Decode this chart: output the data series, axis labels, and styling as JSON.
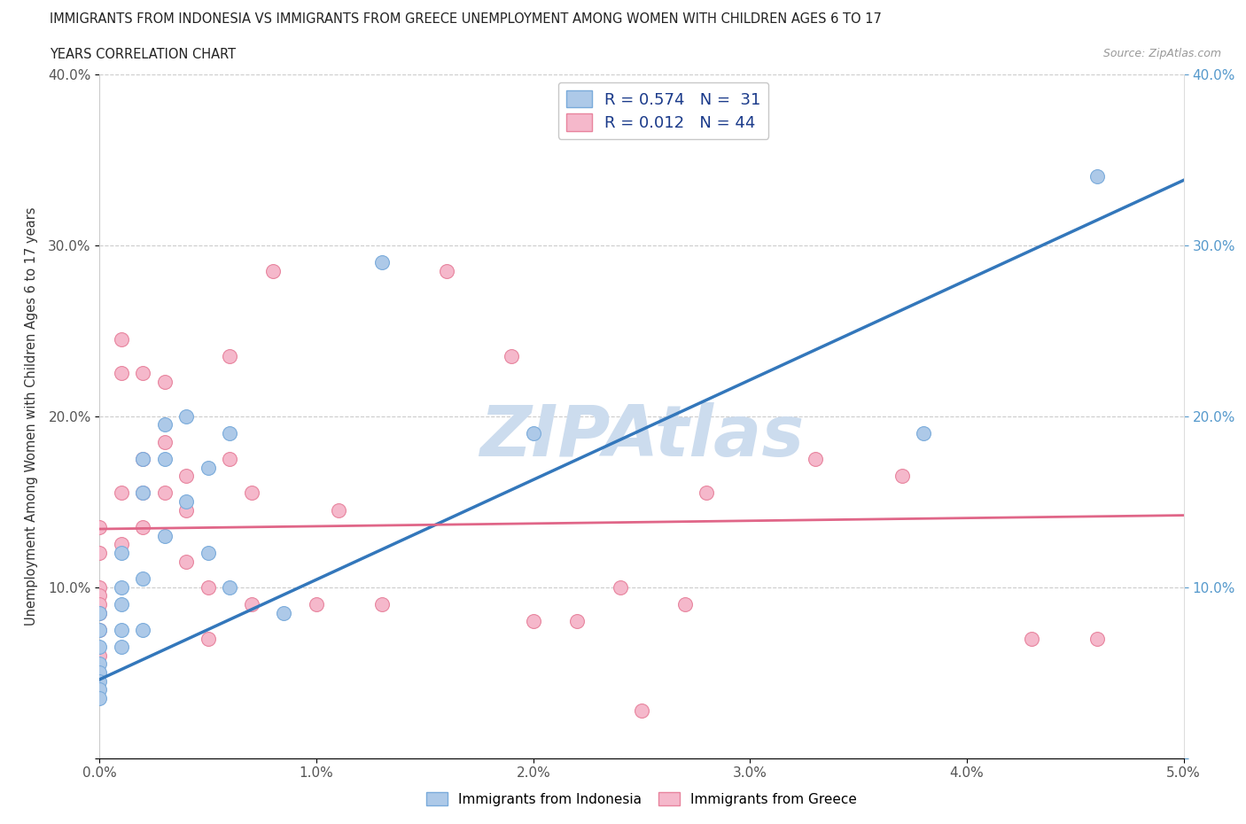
{
  "title_line1": "IMMIGRANTS FROM INDONESIA VS IMMIGRANTS FROM GREECE UNEMPLOYMENT AMONG WOMEN WITH CHILDREN AGES 6 TO 17",
  "title_line2": "YEARS CORRELATION CHART",
  "source": "Source: ZipAtlas.com",
  "ylabel_label": "Unemployment Among Women with Children Ages 6 to 17 years",
  "x_min": 0.0,
  "x_max": 0.05,
  "y_min": 0.0,
  "y_max": 0.4,
  "x_ticks": [
    0.0,
    0.01,
    0.02,
    0.03,
    0.04,
    0.05
  ],
  "x_tick_labels": [
    "0.0%",
    "1.0%",
    "2.0%",
    "3.0%",
    "4.0%",
    "5.0%"
  ],
  "y_ticks": [
    0.0,
    0.1,
    0.2,
    0.3,
    0.4
  ],
  "y_tick_labels": [
    "",
    "10.0%",
    "20.0%",
    "30.0%",
    "40.0%"
  ],
  "indonesia_color": "#adc9e8",
  "greece_color": "#f5b8cb",
  "indonesia_edge": "#7aabdb",
  "greece_edge": "#e8849e",
  "indonesia_R": 0.574,
  "indonesia_N": 31,
  "greece_R": 0.012,
  "greece_N": 44,
  "indonesia_line_color": "#3377bb",
  "greece_line_color": "#e06688",
  "watermark_color": "#ccdcee",
  "indonesia_line_x0": 0.0,
  "indonesia_line_y0": 0.046,
  "indonesia_line_x1": 0.05,
  "indonesia_line_y1": 0.338,
  "greece_line_x0": 0.0,
  "greece_line_x1": 0.05,
  "greece_line_y0": 0.134,
  "greece_line_y1": 0.142,
  "indonesia_x": [
    0.0,
    0.0,
    0.0,
    0.0,
    0.0,
    0.0,
    0.0,
    0.0,
    0.001,
    0.001,
    0.001,
    0.001,
    0.001,
    0.002,
    0.002,
    0.002,
    0.002,
    0.003,
    0.003,
    0.003,
    0.004,
    0.004,
    0.005,
    0.005,
    0.006,
    0.006,
    0.0085,
    0.013,
    0.02,
    0.038,
    0.046
  ],
  "indonesia_y": [
    0.085,
    0.075,
    0.065,
    0.055,
    0.05,
    0.045,
    0.04,
    0.035,
    0.12,
    0.1,
    0.09,
    0.075,
    0.065,
    0.175,
    0.155,
    0.105,
    0.075,
    0.195,
    0.175,
    0.13,
    0.2,
    0.15,
    0.17,
    0.12,
    0.19,
    0.1,
    0.085,
    0.29,
    0.19,
    0.19,
    0.34
  ],
  "greece_x": [
    0.0,
    0.0,
    0.0,
    0.0,
    0.0,
    0.0,
    0.0,
    0.0,
    0.001,
    0.001,
    0.001,
    0.001,
    0.002,
    0.002,
    0.002,
    0.002,
    0.003,
    0.003,
    0.003,
    0.004,
    0.004,
    0.004,
    0.005,
    0.005,
    0.006,
    0.006,
    0.007,
    0.007,
    0.008,
    0.01,
    0.011,
    0.013,
    0.016,
    0.019,
    0.02,
    0.022,
    0.024,
    0.025,
    0.027,
    0.028,
    0.033,
    0.037,
    0.043,
    0.046
  ],
  "greece_y": [
    0.135,
    0.12,
    0.1,
    0.095,
    0.09,
    0.085,
    0.075,
    0.06,
    0.245,
    0.225,
    0.155,
    0.125,
    0.225,
    0.175,
    0.155,
    0.135,
    0.22,
    0.185,
    0.155,
    0.165,
    0.145,
    0.115,
    0.1,
    0.07,
    0.235,
    0.175,
    0.155,
    0.09,
    0.285,
    0.09,
    0.145,
    0.09,
    0.285,
    0.235,
    0.08,
    0.08,
    0.1,
    0.028,
    0.09,
    0.155,
    0.175,
    0.165,
    0.07,
    0.07
  ]
}
